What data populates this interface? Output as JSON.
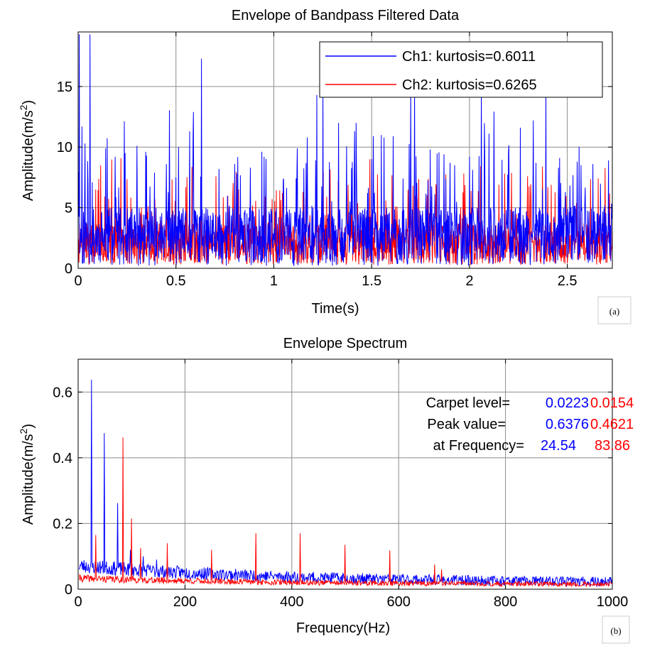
{
  "chart_data": [
    {
      "panel_label": "(a)",
      "type": "line",
      "title": "Envelope of Bandpass Filtered Data",
      "xlabel": "Time(s)",
      "ylabel_main": "Amplitude(m/s",
      "ylabel_sup": "2",
      "ylabel_close": ")",
      "xlim": [
        0,
        2.73
      ],
      "ylim": [
        0,
        19.5
      ],
      "xticks": [
        0,
        0.5,
        1,
        1.5,
        2,
        2.5
      ],
      "xtick_labels": [
        "0",
        "0.5",
        "1",
        "1.5",
        "2",
        "2.5"
      ],
      "yticks": [
        0,
        5,
        10,
        15
      ],
      "ytick_labels": [
        "0",
        "5",
        "10",
        "15"
      ],
      "grid": true,
      "legend_position": "top-right",
      "legend": [
        {
          "label": "Ch1: kurtosis=0.6011",
          "color": "#0000ff"
        },
        {
          "label": "Ch2: kurtosis=0.6265",
          "color": "#ff0000"
        }
      ],
      "series": [
        {
          "name": "Ch1: kurtosis=0.6011",
          "color": "#0000ff",
          "peaks": [
            [
              0.005,
              19.3
            ],
            [
              0.02,
              11.7
            ],
            [
              0.035,
              10.3
            ],
            [
              0.06,
              19.3
            ],
            [
              0.14,
              9.9
            ],
            [
              0.19,
              9.2
            ],
            [
              0.24,
              9.5
            ],
            [
              0.3,
              10.1
            ],
            [
              0.35,
              9.3
            ],
            [
              0.45,
              8.6
            ],
            [
              0.5,
              7.5
            ],
            [
              0.57,
              11.3
            ],
            [
              0.59,
              12.9
            ],
            [
              0.63,
              17.3
            ],
            [
              0.72,
              8.2
            ],
            [
              0.8,
              8.6
            ],
            [
              0.88,
              8.3
            ],
            [
              0.95,
              9.2
            ],
            [
              1.05,
              7.4
            ],
            [
              1.12,
              9.9
            ],
            [
              1.22,
              14.3
            ],
            [
              1.25,
              14.6
            ],
            [
              1.33,
              12.0
            ],
            [
              1.42,
              12.0
            ],
            [
              1.5,
              9.0
            ],
            [
              1.55,
              11.0
            ],
            [
              1.61,
              10.9
            ],
            [
              1.7,
              15.0
            ],
            [
              1.72,
              14.8
            ],
            [
              1.8,
              9.8
            ],
            [
              1.9,
              8.7
            ],
            [
              2.0,
              9.2
            ],
            [
              2.06,
              14.9
            ],
            [
              2.1,
              11.1
            ],
            [
              2.2,
              9.6
            ],
            [
              2.26,
              11.6
            ],
            [
              2.34,
              8.7
            ],
            [
              2.39,
              14.8
            ],
            [
              2.46,
              9.1
            ],
            [
              2.55,
              8.8
            ],
            [
              2.63,
              8.6
            ],
            [
              2.71,
              8.9
            ]
          ]
        },
        {
          "name": "Ch2: kurtosis=0.6265",
          "color": "#ff0000",
          "peaks": [
            [
              0.09,
              6.5
            ],
            [
              0.45,
              6.6
            ],
            [
              0.55,
              6.7
            ],
            [
              0.82,
              6.5
            ],
            [
              1.15,
              6.3
            ],
            [
              1.49,
              9.0
            ],
            [
              1.7,
              7.3
            ],
            [
              1.83,
              6.6
            ],
            [
              2.15,
              6.9
            ],
            [
              2.4,
              6.7
            ],
            [
              2.55,
              6.0
            ]
          ]
        }
      ]
    },
    {
      "panel_label": "(b)",
      "type": "line",
      "title": "Envelope Spectrum",
      "xlabel": "Frequency(Hz)",
      "ylabel_main": "Amplitude(m/s",
      "ylabel_sup": "2",
      "ylabel_close": ")",
      "xlim": [
        0,
        1000
      ],
      "ylim": [
        0,
        0.7
      ],
      "xticks": [
        0,
        200,
        400,
        600,
        800,
        1000
      ],
      "xtick_labels": [
        "0",
        "200",
        "400",
        "600",
        "800",
        "1000"
      ],
      "yticks": [
        0,
        0.2,
        0.4,
        0.6
      ],
      "ytick_labels": [
        "0",
        "0.2",
        "0.4",
        "0.6"
      ],
      "grid": true,
      "annotations": [
        {
          "label": "Carpet level=",
          "ch1": "0.0223",
          "ch2": "0.0154"
        },
        {
          "label": "Peak value=",
          "ch1": "0.6376",
          "ch2": "0.4621"
        },
        {
          "label": "at Frequency=",
          "ch1": "24.54",
          "ch2": "83.86"
        }
      ],
      "series": [
        {
          "name": "Ch1",
          "color": "#0000ff",
          "peaks": [
            [
              24.54,
              0.6376
            ],
            [
              49,
              0.475
            ],
            [
              73.6,
              0.262
            ],
            [
              98,
              0.12
            ],
            [
              122,
              0.1
            ],
            [
              147,
              0.09
            ]
          ]
        },
        {
          "name": "Ch2",
          "color": "#ff0000",
          "peaks": [
            [
              33,
              0.165
            ],
            [
              83.86,
              0.4621
            ],
            [
              100,
              0.215
            ],
            [
              117,
              0.125
            ],
            [
              167,
              0.14
            ],
            [
              250,
              0.12
            ],
            [
              333,
              0.17
            ],
            [
              416,
              0.17
            ],
            [
              500,
              0.135
            ],
            [
              583,
              0.118
            ],
            [
              667,
              0.075
            ],
            [
              680,
              0.06
            ]
          ]
        }
      ]
    }
  ]
}
